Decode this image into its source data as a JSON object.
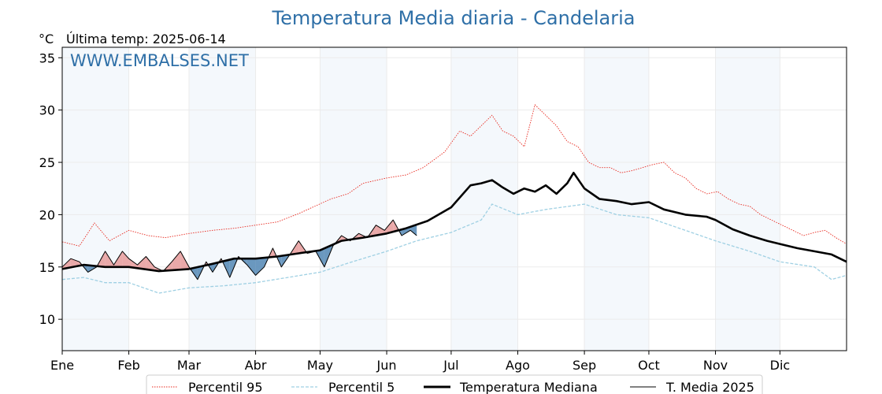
{
  "chart_data": {
    "type": "line",
    "title": "Temperatura Media diaria - Candelaria",
    "unit_label": "°C",
    "subtitle": "Última temp: 2025-06-14",
    "watermark": "WWW.EMBALSES.NET",
    "ylim": [
      7,
      36
    ],
    "yticks": [
      10,
      15,
      20,
      25,
      30,
      35
    ],
    "xlim": [
      0,
      365
    ],
    "months": [
      "Ene",
      "Feb",
      "Mar",
      "Abr",
      "May",
      "Jun",
      "Jul",
      "Ago",
      "Sep",
      "Oct",
      "Nov",
      "Dic"
    ],
    "month_starts": [
      0,
      31,
      59,
      90,
      120,
      151,
      181,
      212,
      243,
      273,
      304,
      334
    ],
    "grid": true,
    "legend_position": "bottom",
    "colors": {
      "p95": "#e8281e",
      "p5": "#9fd0e3",
      "mediana": "#000000",
      "media2025": "#000000",
      "above_fill": "#e8a0a0",
      "below_fill": "#5b8db8",
      "shade": "#f4f8fc",
      "title": "#2e6fa7"
    },
    "series": [
      {
        "name": "Percentil 95",
        "style": "dotted-red",
        "x": [
          0,
          8,
          15,
          22,
          31,
          40,
          48,
          59,
          70,
          80,
          90,
          100,
          110,
          125,
          133,
          140,
          151,
          160,
          168,
          178,
          185,
          190,
          195,
          200,
          205,
          210,
          215,
          220,
          225,
          230,
          235,
          240,
          245,
          250,
          255,
          260,
          265,
          270,
          275,
          280,
          285,
          290,
          295,
          300,
          305,
          310,
          315,
          320,
          325,
          330,
          335,
          340,
          345,
          350,
          355,
          360,
          365
        ],
        "values": [
          17.4,
          17.0,
          19.2,
          17.5,
          18.5,
          18.0,
          17.8,
          18.2,
          18.5,
          18.7,
          19.0,
          19.3,
          20.1,
          21.5,
          22.0,
          23.0,
          23.5,
          23.8,
          24.5,
          26.0,
          28.0,
          27.5,
          28.5,
          29.5,
          28.0,
          27.5,
          26.5,
          30.5,
          29.5,
          28.5,
          27.0,
          26.5,
          25.0,
          24.5,
          24.5,
          24.0,
          24.2,
          24.5,
          24.8,
          25.0,
          24.0,
          23.5,
          22.5,
          22.0,
          22.2,
          21.5,
          21.0,
          20.8,
          20.0,
          19.5,
          19.0,
          18.5,
          18.0,
          18.3,
          18.5,
          17.8,
          17.2
        ]
      },
      {
        "name": "Percentil 5",
        "style": "dashed-lightblue",
        "x": [
          0,
          10,
          20,
          31,
          45,
          59,
          75,
          90,
          105,
          120,
          135,
          151,
          165,
          181,
          195,
          200,
          212,
          225,
          243,
          258,
          273,
          290,
          304,
          320,
          334,
          350,
          358,
          365
        ],
        "values": [
          13.8,
          14.0,
          13.5,
          13.5,
          12.5,
          13.0,
          13.2,
          13.5,
          14.0,
          14.5,
          15.5,
          16.5,
          17.5,
          18.3,
          19.5,
          21.0,
          20.0,
          20.5,
          21.0,
          20.0,
          19.7,
          18.5,
          17.5,
          16.5,
          15.5,
          15.0,
          13.8,
          14.2
        ]
      },
      {
        "name": "Temperatura Mediana",
        "style": "thick-black",
        "x": [
          0,
          10,
          20,
          31,
          45,
          59,
          70,
          80,
          90,
          100,
          110,
          120,
          130,
          140,
          151,
          160,
          170,
          181,
          190,
          195,
          200,
          205,
          210,
          215,
          220,
          225,
          230,
          235,
          238,
          243,
          250,
          258,
          265,
          273,
          280,
          290,
          300,
          304,
          312,
          320,
          328,
          334,
          342,
          350,
          358,
          365
        ],
        "values": [
          14.8,
          15.2,
          15.0,
          15.0,
          14.6,
          14.8,
          15.3,
          15.8,
          15.8,
          16.0,
          16.3,
          16.6,
          17.5,
          17.8,
          18.2,
          18.7,
          19.4,
          20.7,
          22.8,
          23.0,
          23.3,
          22.6,
          22.0,
          22.5,
          22.2,
          22.8,
          22.0,
          23.0,
          24.0,
          22.5,
          21.5,
          21.3,
          21.0,
          21.2,
          20.5,
          20.0,
          19.8,
          19.5,
          18.6,
          18.0,
          17.5,
          17.2,
          16.8,
          16.5,
          16.2,
          15.5
        ]
      },
      {
        "name": "T. Media 2025",
        "style": "thin-black",
        "x": [
          0,
          4,
          8,
          12,
          16,
          20,
          24,
          28,
          31,
          35,
          39,
          43,
          47,
          51,
          55,
          59,
          63,
          67,
          70,
          74,
          78,
          82,
          86,
          90,
          94,
          98,
          102,
          106,
          110,
          114,
          118,
          122,
          126,
          130,
          134,
          138,
          142,
          146,
          150,
          154,
          158,
          162,
          165
        ],
        "values": [
          15.0,
          15.8,
          15.5,
          14.5,
          15.0,
          16.5,
          15.2,
          16.5,
          15.8,
          15.2,
          16.0,
          15.0,
          14.6,
          15.5,
          16.5,
          15.0,
          13.8,
          15.5,
          14.5,
          15.8,
          14.0,
          16.0,
          15.2,
          14.2,
          15.0,
          16.8,
          15.0,
          16.2,
          17.5,
          16.3,
          16.5,
          15.0,
          17.0,
          18.0,
          17.5,
          18.2,
          17.8,
          19.0,
          18.5,
          19.5,
          18.0,
          18.5,
          18.0
        ]
      }
    ]
  }
}
